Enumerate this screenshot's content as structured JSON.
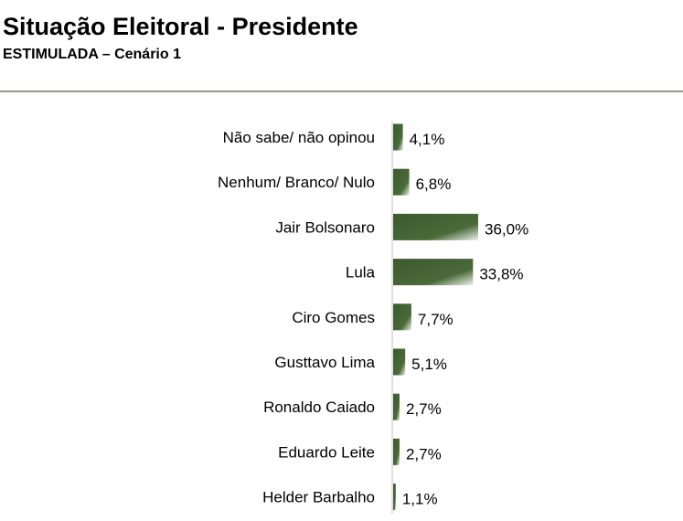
{
  "header": {
    "title": "Situação Eleitoral - Presidente",
    "subtitle": "ESTIMULADA – Cenário 1"
  },
  "colors": {
    "bar_dark": "#3c5a2c",
    "bar_light": "#eef3ea",
    "axis": "#bfbfbf",
    "rule": "#9c9884"
  },
  "chart_data": {
    "type": "bar",
    "orientation": "horizontal",
    "title": "",
    "xlabel": "",
    "ylabel": "",
    "xlim": [
      0,
      40
    ],
    "grid": false,
    "legend": "none",
    "categories": [
      "Não sabe/ não opinou",
      "Nenhum/ Branco/ Nulo",
      "Jair Bolsonaro",
      "Lula",
      "Ciro Gomes",
      "Gusttavo Lima",
      "Ronaldo Caiado",
      "Eduardo Leite",
      "Helder Barbalho"
    ],
    "values": [
      4.1,
      6.8,
      36.0,
      33.8,
      7.7,
      5.1,
      2.7,
      2.7,
      1.1
    ],
    "value_labels": [
      "4,1%",
      "6,8%",
      "36,0%",
      "33,8%",
      "7,7%",
      "5,1%",
      "2,7%",
      "2,7%",
      "1,1%"
    ]
  }
}
